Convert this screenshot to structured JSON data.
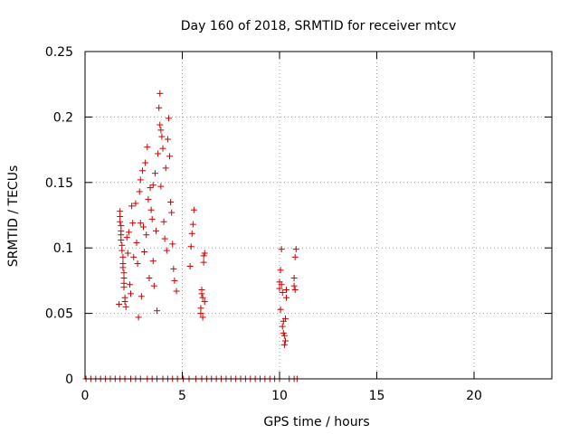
{
  "chart_data": {
    "type": "scatter",
    "title": "Day 160 of 2018, SRMTID for receiver mtcv",
    "xlabel": "GPS time / hours",
    "ylabel": "SRMTID / TECUs",
    "xlim": [
      0,
      24
    ],
    "ylim": [
      0,
      0.25
    ],
    "x_ticks": [
      0,
      5,
      10,
      15,
      20
    ],
    "x_tick_labels": [
      "0",
      "5",
      "10",
      "15",
      "20"
    ],
    "y_ticks": [
      0,
      0.05,
      0.1,
      0.15,
      0.2,
      0.25
    ],
    "y_tick_labels": [
      "0",
      "0.05",
      "0.1",
      "0.15",
      "0.2",
      "0.25"
    ],
    "grid": true,
    "marker": "plus",
    "marker_color": "#cc0000",
    "series": [
      {
        "points": [
          [
            1.75,
            0.057
          ],
          [
            1.8,
            0.128
          ],
          [
            1.8,
            0.124
          ],
          [
            1.8,
            0.12
          ],
          [
            1.85,
            0.117
          ],
          [
            1.85,
            0.113
          ],
          [
            1.85,
            0.11
          ],
          [
            1.85,
            0.106
          ],
          [
            1.9,
            0.102
          ],
          [
            1.9,
            0.098
          ],
          [
            1.95,
            0.093
          ],
          [
            1.95,
            0.088
          ],
          [
            1.95,
            0.085
          ],
          [
            2.0,
            0.081
          ],
          [
            2.0,
            0.077
          ],
          [
            2.0,
            0.073
          ],
          [
            2.0,
            0.07
          ],
          [
            2.05,
            0.062
          ],
          [
            2.05,
            0.059
          ],
          [
            2.1,
            0.055
          ],
          [
            2.15,
            0.108
          ],
          [
            2.2,
            0.096
          ],
          [
            2.25,
            0.112
          ],
          [
            2.3,
            0.072
          ],
          [
            2.35,
            0.065
          ],
          [
            2.4,
            0.132
          ],
          [
            2.45,
            0.119
          ],
          [
            2.5,
            0.093
          ],
          [
            2.6,
            0.134
          ],
          [
            2.65,
            0.104
          ],
          [
            2.7,
            0.088
          ],
          [
            2.75,
            0.047
          ],
          [
            2.8,
            0.143
          ],
          [
            2.85,
            0.152
          ],
          [
            2.85,
            0.119
          ],
          [
            2.9,
            0.063
          ],
          [
            2.95,
            0.159
          ],
          [
            3.0,
            0.116
          ],
          [
            3.05,
            0.097
          ],
          [
            3.1,
            0.165
          ],
          [
            3.15,
            0.11
          ],
          [
            3.2,
            0.177
          ],
          [
            3.25,
            0.137
          ],
          [
            3.3,
            0.077
          ],
          [
            3.35,
            0.146
          ],
          [
            3.4,
            0.129
          ],
          [
            3.45,
            0.122
          ],
          [
            3.5,
            0.148
          ],
          [
            3.5,
            0.09
          ],
          [
            3.55,
            0.071
          ],
          [
            3.6,
            0.157
          ],
          [
            3.65,
            0.113
          ],
          [
            3.7,
            0.052
          ],
          [
            3.75,
            0.172
          ],
          [
            3.8,
            0.207
          ],
          [
            3.85,
            0.218
          ],
          [
            3.85,
            0.194
          ],
          [
            3.9,
            0.19
          ],
          [
            3.9,
            0.147
          ],
          [
            3.95,
            0.185
          ],
          [
            4.0,
            0.176
          ],
          [
            4.05,
            0.12
          ],
          [
            4.1,
            0.107
          ],
          [
            4.15,
            0.161
          ],
          [
            4.2,
            0.098
          ],
          [
            4.25,
            0.183
          ],
          [
            4.3,
            0.199
          ],
          [
            4.35,
            0.17
          ],
          [
            4.4,
            0.135
          ],
          [
            4.45,
            0.127
          ],
          [
            4.5,
            0.103
          ],
          [
            4.55,
            0.084
          ],
          [
            4.6,
            0.075
          ],
          [
            4.7,
            0.067
          ],
          [
            5.4,
            0.086
          ],
          [
            5.45,
            0.101
          ],
          [
            5.5,
            0.111
          ],
          [
            5.55,
            0.118
          ],
          [
            5.6,
            0.129
          ],
          [
            5.95,
            0.05
          ],
          [
            5.95,
            0.054
          ],
          [
            6.0,
            0.065
          ],
          [
            6.0,
            0.068
          ],
          [
            6.05,
            0.062
          ],
          [
            6.05,
            0.047
          ],
          [
            6.1,
            0.089
          ],
          [
            6.1,
            0.094
          ],
          [
            6.15,
            0.096
          ],
          [
            6.15,
            0.059
          ],
          [
            10.0,
            0.069
          ],
          [
            10.0,
            0.074
          ],
          [
            10.05,
            0.083
          ],
          [
            10.05,
            0.053
          ],
          [
            10.1,
            0.099
          ],
          [
            10.1,
            0.072
          ],
          [
            10.15,
            0.066
          ],
          [
            10.15,
            0.04
          ],
          [
            10.2,
            0.044
          ],
          [
            10.2,
            0.035
          ],
          [
            10.25,
            0.033
          ],
          [
            10.25,
            0.026
          ],
          [
            10.3,
            0.029
          ],
          [
            10.3,
            0.046
          ],
          [
            10.35,
            0.062
          ],
          [
            10.35,
            0.068
          ],
          [
            10.75,
            0.077
          ],
          [
            10.75,
            0.071
          ],
          [
            10.8,
            0.068
          ],
          [
            10.8,
            0.093
          ],
          [
            10.85,
            0.099
          ],
          [
            0.05,
            0
          ],
          [
            0.3,
            0
          ],
          [
            0.55,
            0
          ],
          [
            0.8,
            0
          ],
          [
            1.05,
            0
          ],
          [
            1.3,
            0
          ],
          [
            1.55,
            0
          ],
          [
            1.8,
            0
          ],
          [
            2.05,
            0
          ],
          [
            2.35,
            0
          ],
          [
            2.6,
            0
          ],
          [
            2.85,
            0
          ],
          [
            3.2,
            0
          ],
          [
            3.45,
            0
          ],
          [
            3.7,
            0
          ],
          [
            4.0,
            0
          ],
          [
            4.25,
            0
          ],
          [
            4.5,
            0
          ],
          [
            4.75,
            0
          ],
          [
            5.05,
            0
          ],
          [
            5.35,
            0
          ],
          [
            5.7,
            0
          ],
          [
            6.0,
            0
          ],
          [
            6.25,
            0
          ],
          [
            6.5,
            0
          ],
          [
            6.75,
            0
          ],
          [
            7.0,
            0
          ],
          [
            7.25,
            0
          ],
          [
            7.5,
            0
          ],
          [
            7.75,
            0
          ],
          [
            8.0,
            0
          ],
          [
            8.25,
            0
          ],
          [
            8.5,
            0
          ],
          [
            8.75,
            0
          ],
          [
            9.0,
            0
          ],
          [
            9.25,
            0
          ],
          [
            9.5,
            0
          ],
          [
            9.75,
            0
          ],
          [
            10.0,
            0
          ],
          [
            10.5,
            0
          ],
          [
            10.75,
            0
          ],
          [
            10.9,
            0
          ]
        ]
      }
    ]
  }
}
